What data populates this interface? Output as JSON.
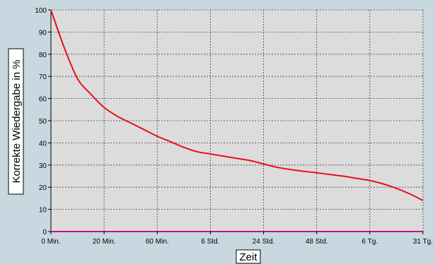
{
  "chart_data": {
    "type": "line",
    "xlabel": "Zeit",
    "ylabel": "Korrekte Wiedergabe in %",
    "ylim": [
      0,
      100
    ],
    "yticks": [
      0,
      10,
      20,
      30,
      40,
      50,
      60,
      70,
      80,
      90,
      100
    ],
    "xtick_labels": [
      "0 Min.",
      "20 Min.",
      "60 Min.",
      "6 Std.",
      "24 Std.",
      "48 Std.",
      "6 Tg.",
      "31 Tg."
    ],
    "x_position_index": [
      0,
      0.25,
      0.5,
      0.75,
      1,
      1.25,
      1.5,
      1.75,
      2,
      2.25,
      2.5,
      2.75,
      3,
      3.25,
      3.5,
      3.75,
      4,
      4.25,
      4.5,
      4.75,
      5,
      5.25,
      5.5,
      5.75,
      6,
      6.25,
      6.5,
      6.75,
      7
    ],
    "series": [
      {
        "color": "#e8101a",
        "values": [
          100,
          83,
          69,
          62,
          56,
          52,
          49,
          46,
          43,
          40.5,
          38,
          36,
          35,
          34,
          33,
          32,
          30.5,
          29,
          28,
          27.2,
          26.5,
          25.7,
          25,
          24,
          23,
          21.5,
          19.5,
          17,
          14
        ]
      }
    ],
    "grid": true,
    "plot_background": "#dcdcdc",
    "page_background": "#c9d8e0",
    "baseline_color": "#c71585"
  }
}
